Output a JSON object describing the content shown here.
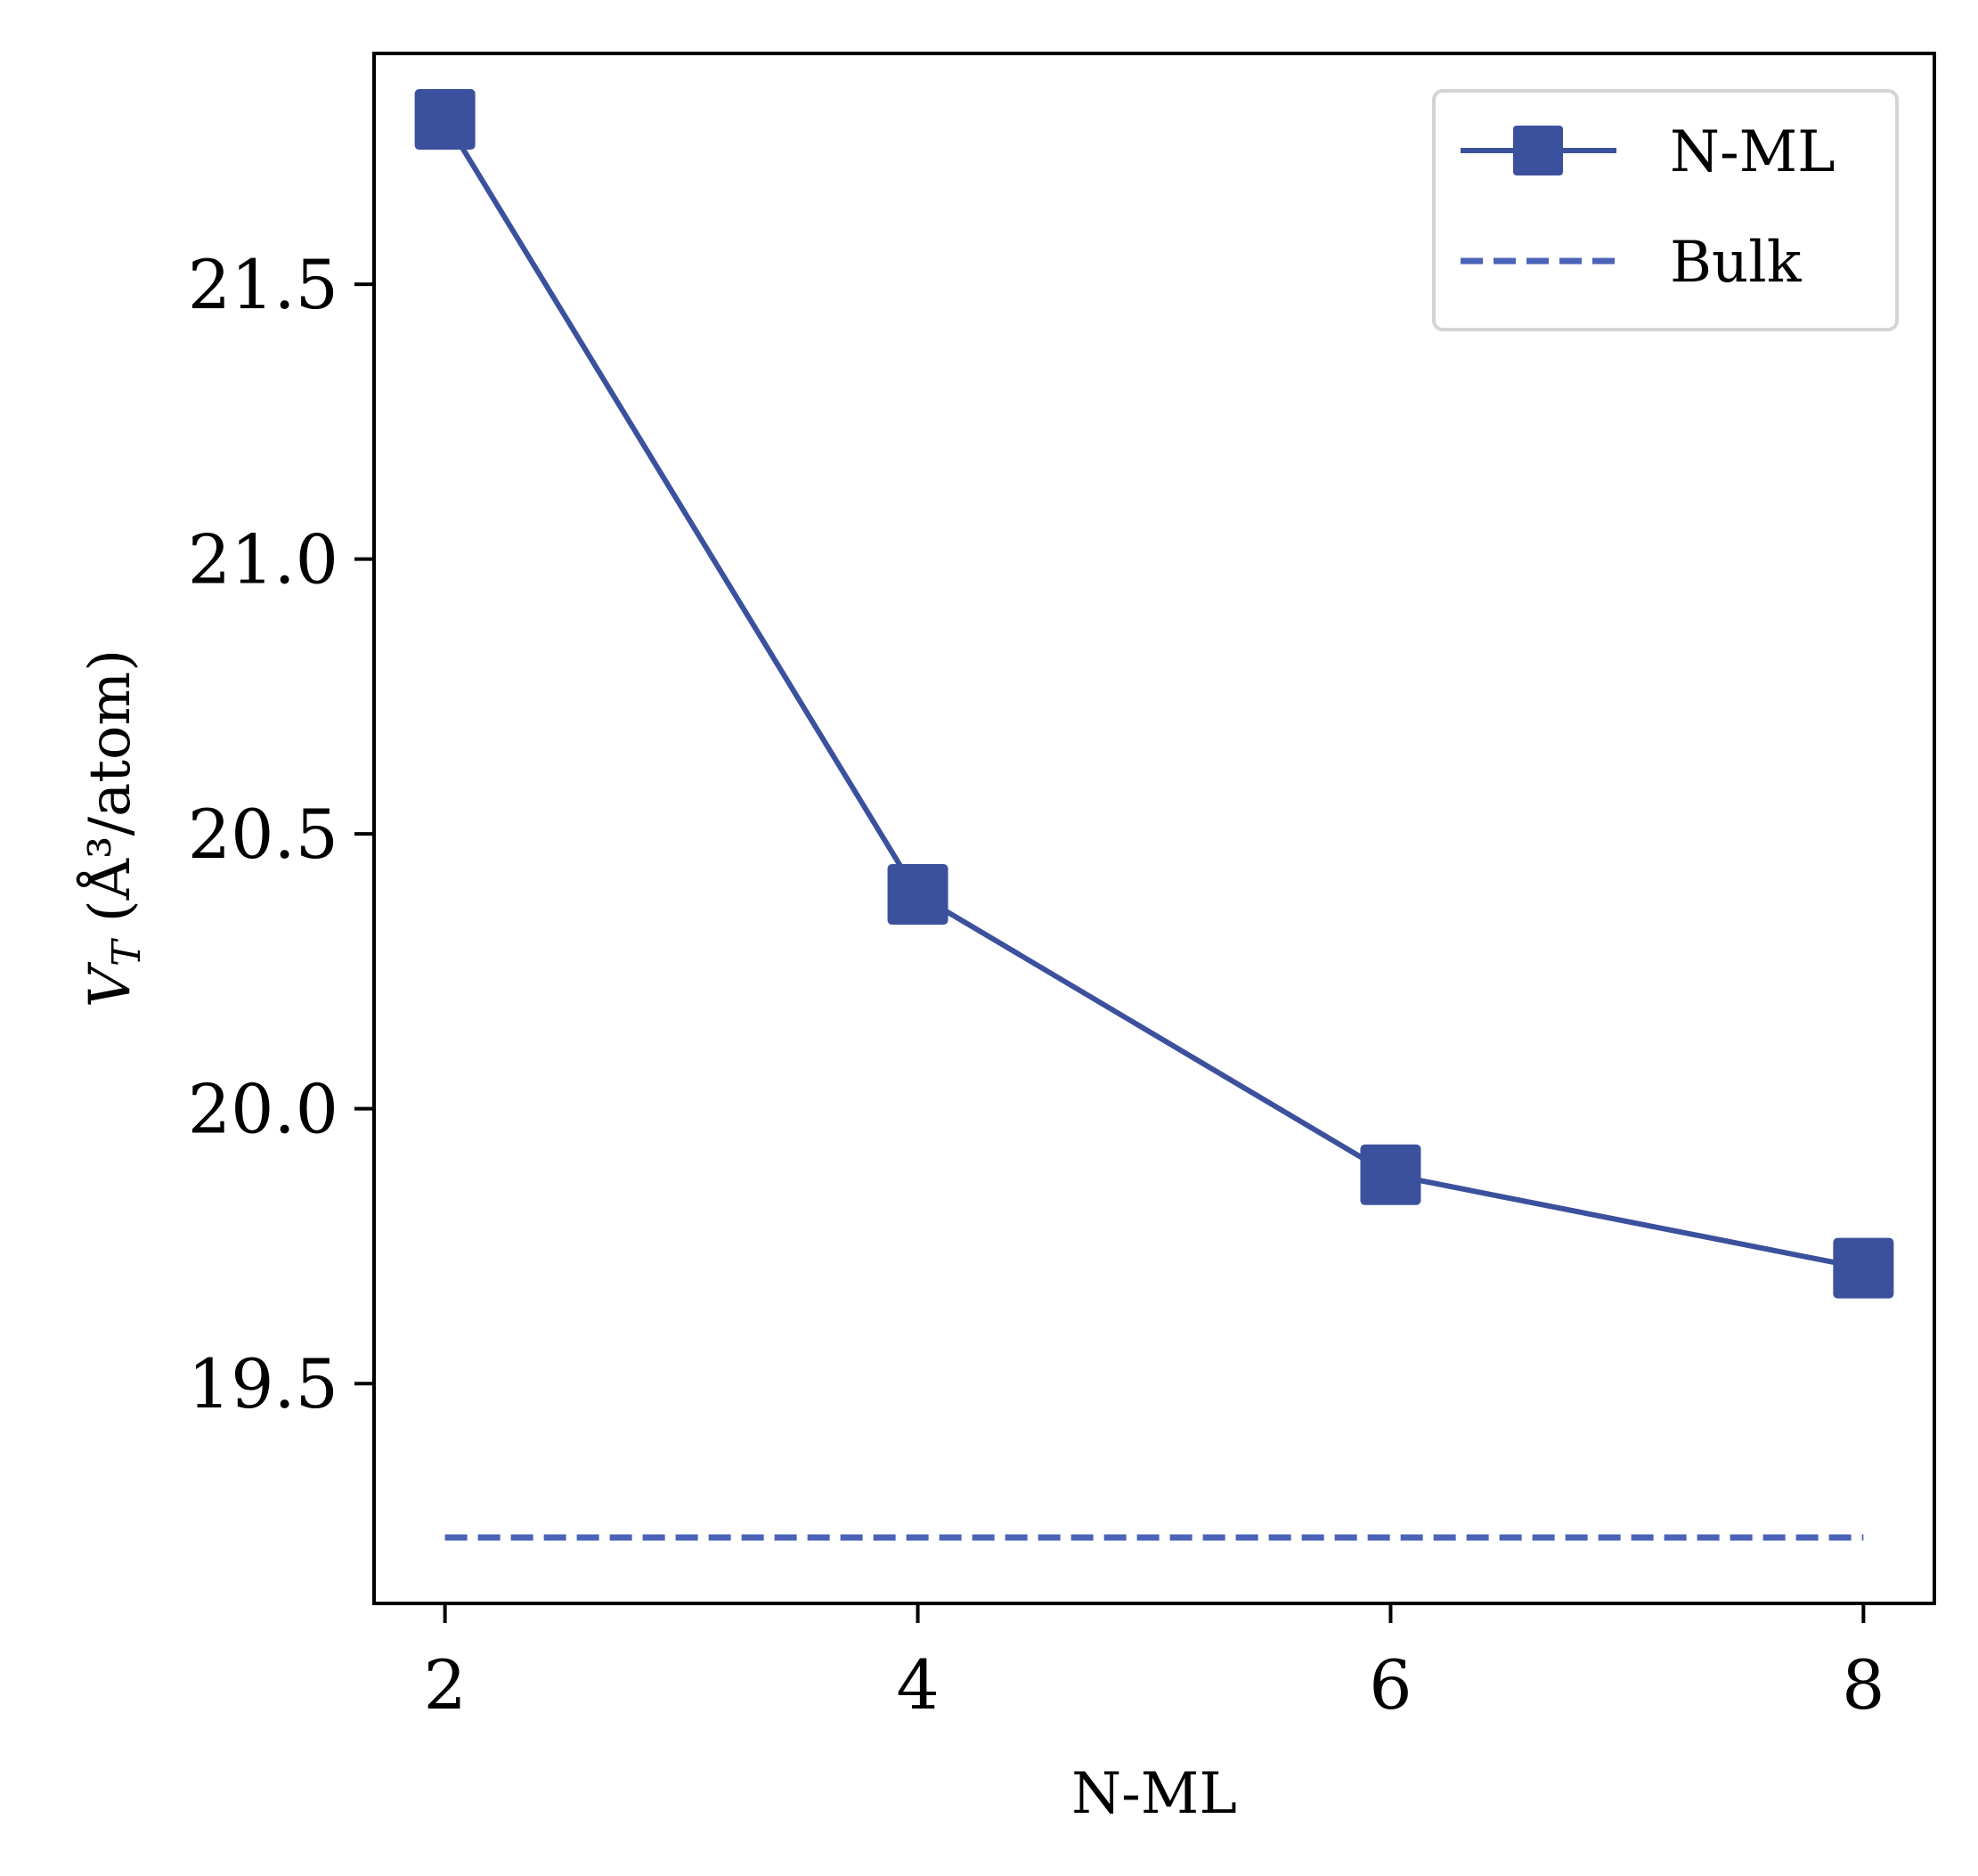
{
  "chart_data": {
    "type": "line",
    "xlabel": "N-ML",
    "ylabel": "V_T (Å³/atom)",
    "ylabel_main": "V",
    "ylabel_sub": "T",
    "ylabel_rest": " (Å³/atom)",
    "xlim": [
      1.7,
      8.3
    ],
    "ylim": [
      19.1,
      21.92
    ],
    "x_ticks": [
      2,
      4,
      6,
      8
    ],
    "x_tick_labels": [
      "2",
      "4",
      "6",
      "8"
    ],
    "y_ticks": [
      19.5,
      20.0,
      20.5,
      21.0,
      21.5
    ],
    "y_tick_labels": [
      "19.5",
      "20.0",
      "20.5",
      "21.0",
      "21.5"
    ],
    "grid": false,
    "legend_position": "top-right",
    "series": [
      {
        "name": "N-ML",
        "style": "solid",
        "marker": "square",
        "color": "#3c519d",
        "x": [
          2,
          4,
          6,
          8
        ],
        "y": [
          21.8,
          20.39,
          19.88,
          19.71
        ]
      },
      {
        "name": "Bulk",
        "style": "dashed",
        "marker": "none",
        "color": "#4a63b8",
        "x": [
          2,
          8
        ],
        "y": [
          19.22,
          19.22
        ]
      }
    ]
  }
}
